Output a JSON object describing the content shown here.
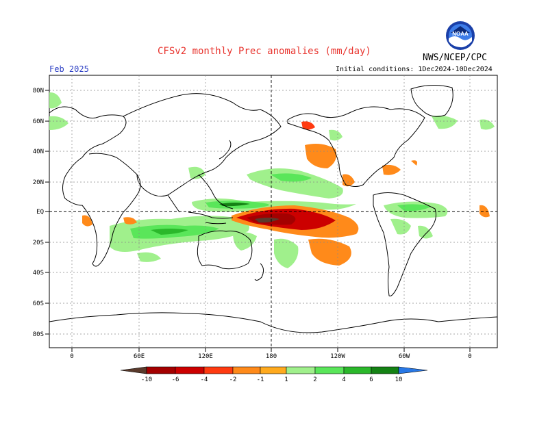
{
  "title": "CFSv2 monthly Prec anomalies (mm/day)",
  "target_month": "Feb 2025",
  "initial_conditions": "Initial conditions: 1Dec2024-10Dec2024",
  "agency": "NWS/NCEP/CPC",
  "logo_text": "NOAA",
  "lat_labels": [
    "80N",
    "60N",
    "40N",
    "20N",
    "EQ",
    "20S",
    "40S",
    "60S",
    "80S"
  ],
  "lon_labels": [
    "0",
    "60E",
    "120E",
    "180",
    "120W",
    "60W",
    "0"
  ],
  "colorbar": {
    "labels": [
      "-10",
      "-6",
      "-4",
      "-2",
      "-1",
      "1",
      "2",
      "4",
      "6",
      "10"
    ],
    "colors": [
      "#5a3a2c",
      "#a40000",
      "#cc0000",
      "#ff3a10",
      "#ff8a1a",
      "#ffaa1e",
      "#ffffff",
      "#a0f08c",
      "#5ae65a",
      "#2bb82b",
      "#148214",
      "#2878e6"
    ]
  },
  "colors": {
    "title": "#e8332d",
    "month": "#2c3fc4",
    "grid": "#888888"
  }
}
